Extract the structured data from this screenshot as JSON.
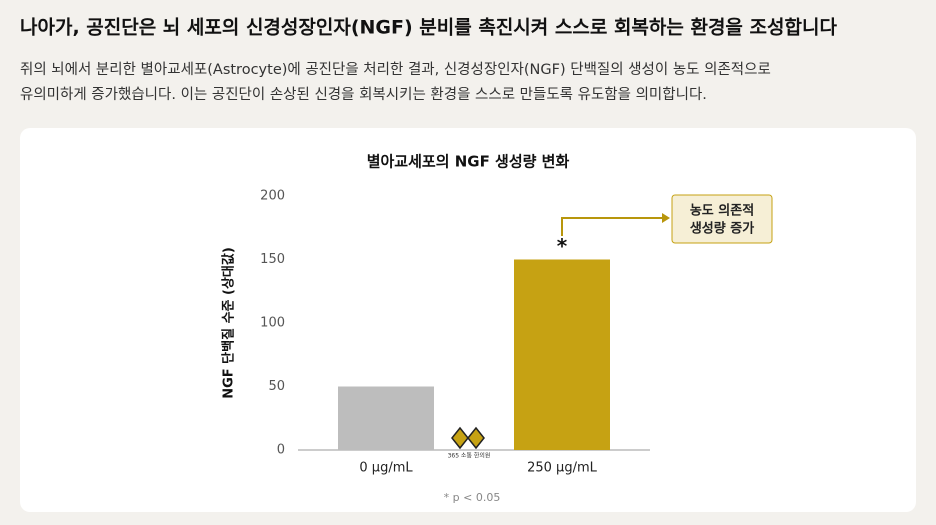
{
  "header": {
    "title": "나아가, 공진단은 뇌 세포의 신경성장인자(NGF) 분비를 촉진시켜 스스로 회복하는 환경을 조성합니다",
    "body": [
      "쥐의 뇌에서 분리한 별아교세포(Astrocyte)에 공진단을 처리한 결과, 신경성장인자(NGF) 단백질의 생성이 농도 의존적으로",
      "유의미하게 증가했습니다. 이는 공진단이 손상된 신경을 회복시키는 환경을 스스로 만들도록 유도함을 의미합니다."
    ]
  },
  "chart_data": {
    "type": "bar",
    "title": "별아교세포의 NGF 생성량 변화",
    "y_label": "NGF 단백질 수준 (상대값)",
    "categories": [
      "0 μg/mL",
      "250 μg/mL"
    ],
    "values": [
      50,
      150
    ],
    "colors": [
      "#bdbdbd",
      "#c6a213"
    ],
    "ylim": [
      0,
      200
    ],
    "yticks": [
      0,
      50,
      100,
      150,
      200
    ],
    "grid": false,
    "significance": "*",
    "annotation": [
      "농도 의존적",
      "생성량 증가"
    ],
    "footnote": "* p < 0.05",
    "watermark": "365 소통 한의원"
  }
}
